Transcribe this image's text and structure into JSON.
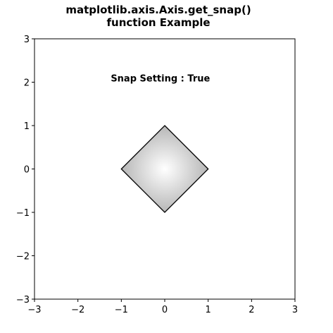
{
  "chart_data": {
    "type": "scatter",
    "title_lines": [
      "matplotlib.axis.Axis.get_snap()",
      "function Example"
    ],
    "xlim": [
      -3,
      3
    ],
    "ylim": [
      -3,
      3
    ],
    "x_ticks": [
      -3,
      -2,
      -1,
      0,
      1,
      2,
      3
    ],
    "y_ticks": [
      -3,
      -2,
      -1,
      0,
      1,
      2,
      3
    ],
    "x_tick_labels": [
      "−3",
      "−2",
      "−1",
      "0",
      "1",
      "2",
      "3"
    ],
    "y_tick_labels": [
      "−3",
      "−2",
      "−1",
      "0",
      "1",
      "2",
      "3"
    ],
    "grid": false,
    "shape": {
      "kind": "polygon",
      "vertices": [
        [
          0,
          1
        ],
        [
          1,
          0
        ],
        [
          0,
          -1
        ],
        [
          -1,
          0
        ]
      ],
      "fill": "radial-gradient",
      "gradient_colors": [
        "#ffffff",
        "#a8a8a8"
      ],
      "edge_color": "#000000"
    },
    "annotation": {
      "text": "Snap Setting : True",
      "x": -0.1,
      "y": 2.0
    }
  }
}
